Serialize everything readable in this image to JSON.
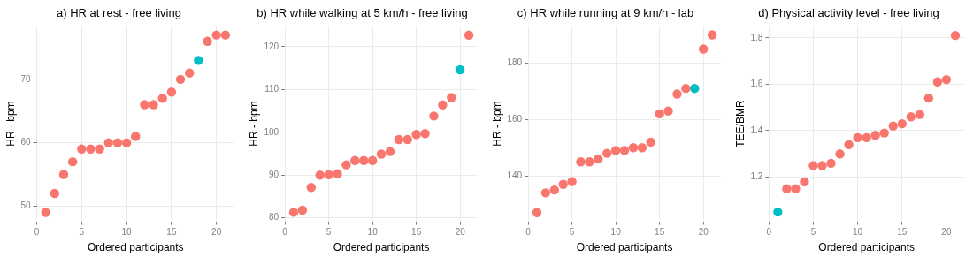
{
  "chart_data": [
    {
      "type": "scatter",
      "title": "a) HR at rest - free living",
      "xlabel": "Ordered participants",
      "ylabel": "HR - bpm",
      "xlim": [
        0,
        22
      ],
      "xticks": [
        0,
        5,
        10,
        15,
        20
      ],
      "ylim": [
        47.6,
        78.4
      ],
      "yticks": [
        50,
        60,
        70
      ],
      "grid": true,
      "marker": "circle",
      "series": [
        {
          "color": "#f8766d",
          "x": [
            1,
            2,
            3,
            4,
            5,
            6,
            7,
            8,
            9,
            10,
            11,
            12,
            13,
            14,
            15,
            16,
            17,
            19,
            20,
            21
          ],
          "values": [
            49,
            52,
            55,
            57,
            59,
            59,
            59,
            60,
            60,
            60,
            61,
            66,
            66,
            67,
            68,
            70,
            71,
            76,
            77,
            77
          ]
        },
        {
          "color": "#00bfc4",
          "x": [
            18
          ],
          "values": [
            73
          ]
        }
      ]
    },
    {
      "type": "scatter",
      "title": "b) HR while walking at 5 km/h - free living",
      "xlabel": "Ordered participants",
      "ylabel": "HR - bpm",
      "xlim": [
        0,
        22
      ],
      "xticks": [
        0,
        5,
        10,
        15,
        20
      ],
      "ylim": [
        79.2,
        124.8
      ],
      "yticks": [
        80,
        90,
        100,
        110,
        120
      ],
      "grid": true,
      "marker": "circle",
      "series": [
        {
          "color": "#f8766d",
          "x": [
            1,
            2,
            3,
            4,
            5,
            6,
            7,
            8,
            9,
            10,
            11,
            12,
            13,
            14,
            15,
            16,
            17,
            18,
            19,
            21
          ],
          "values": [
            81.3,
            81.8,
            87.1,
            90,
            90.1,
            90.3,
            92.4,
            93.4,
            93.4,
            93.4,
            94.9,
            95.5,
            98.3,
            98.3,
            99.5,
            99.7,
            103.8,
            106.4,
            108.1,
            122.7
          ]
        },
        {
          "color": "#00bfc4",
          "x": [
            20
          ],
          "values": [
            114.6
          ]
        }
      ]
    },
    {
      "type": "scatter",
      "title": "c) HR while running at 9 km/h - lab",
      "xlabel": "Ordered participants",
      "ylabel": "HR - bpm",
      "xlim": [
        0,
        22
      ],
      "xticks": [
        0,
        5,
        10,
        15,
        20
      ],
      "ylim": [
        123.9,
        193.1
      ],
      "yticks": [
        140,
        160,
        180
      ],
      "grid": true,
      "marker": "circle",
      "series": [
        {
          "color": "#f8766d",
          "x": [
            1,
            2,
            3,
            4,
            5,
            6,
            7,
            8,
            9,
            10,
            11,
            12,
            13,
            14,
            15,
            16,
            17,
            18,
            20,
            21
          ],
          "values": [
            127,
            134,
            135,
            137,
            138,
            145,
            145,
            146,
            148,
            149,
            149,
            150,
            150,
            152,
            162,
            163,
            169,
            171,
            185,
            190
          ]
        },
        {
          "color": "#00bfc4",
          "x": [
            19
          ],
          "values": [
            171
          ]
        }
      ]
    },
    {
      "type": "scatter",
      "title": "d) Physical activity level - free living",
      "xlabel": "Ordered participants",
      "ylabel": "TEE/BMR",
      "xlim": [
        0,
        22
      ],
      "xticks": [
        0,
        5,
        10,
        15,
        20
      ],
      "ylim": [
        1.01,
        1.85
      ],
      "yticks": [
        {
          "value": 1.2,
          "label": "1.2"
        },
        {
          "value": 1.4,
          "label": "1.4"
        },
        {
          "value": 1.6,
          "label": "1.6"
        },
        {
          "value": 1.8,
          "label": "1.8"
        }
      ],
      "grid": true,
      "marker": "circle",
      "series": [
        {
          "color": "#f8766d",
          "x": [
            2,
            3,
            4,
            5,
            6,
            7,
            8,
            9,
            10,
            11,
            12,
            13,
            14,
            15,
            16,
            17,
            18,
            19,
            20,
            21
          ],
          "values": [
            1.15,
            1.15,
            1.18,
            1.25,
            1.25,
            1.26,
            1.3,
            1.34,
            1.37,
            1.37,
            1.38,
            1.39,
            1.42,
            1.43,
            1.46,
            1.47,
            1.54,
            1.61,
            1.62,
            1.81
          ]
        },
        {
          "color": "#00bfc4",
          "x": [
            1
          ],
          "values": [
            1.05
          ]
        }
      ]
    }
  ]
}
